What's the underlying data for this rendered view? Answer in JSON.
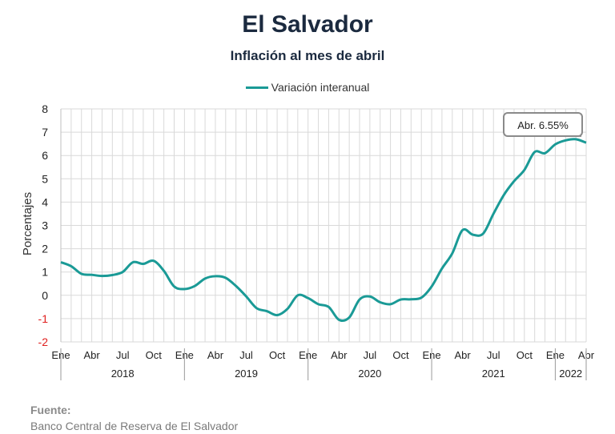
{
  "header": {
    "title": "El Salvador",
    "subtitle": "Inflación al mes de abril"
  },
  "legend": {
    "series_label": "Variación interanual"
  },
  "annotation": {
    "text": "Abr. 6.55%"
  },
  "source": {
    "label": "Fuente:",
    "text": "Banco Central de Reserva de El Salvador"
  },
  "colors": {
    "series": "#1a9a96",
    "grid": "#d9d9d9",
    "negative_tick": "#e0201f"
  },
  "chart_data": {
    "type": "line",
    "title": "El Salvador",
    "subtitle": "Inflación al mes de abril",
    "ylabel": "Porcentajes",
    "xlabel": "",
    "ylim": [
      -2,
      8
    ],
    "yticks": [
      -2,
      -1,
      0,
      1,
      2,
      3,
      4,
      5,
      6,
      7,
      8
    ],
    "grid": true,
    "legend_position": "top-center",
    "x_tick_labels": [
      "Ene",
      "Abr",
      "Jul",
      "Oct",
      "Ene",
      "Abr",
      "Jul",
      "Oct",
      "Ene",
      "Abr",
      "Jul",
      "Oct",
      "Ene",
      "Abr",
      "Jul",
      "Oct",
      "Ene",
      "Abr"
    ],
    "year_labels": [
      "2018",
      "2019",
      "2020",
      "2021",
      "2022"
    ],
    "x": [
      "2018-01",
      "2018-02",
      "2018-03",
      "2018-04",
      "2018-05",
      "2018-06",
      "2018-07",
      "2018-08",
      "2018-09",
      "2018-10",
      "2018-11",
      "2018-12",
      "2019-01",
      "2019-02",
      "2019-03",
      "2019-04",
      "2019-05",
      "2019-06",
      "2019-07",
      "2019-08",
      "2019-09",
      "2019-10",
      "2019-11",
      "2019-12",
      "2020-01",
      "2020-02",
      "2020-03",
      "2020-04",
      "2020-05",
      "2020-06",
      "2020-07",
      "2020-08",
      "2020-09",
      "2020-10",
      "2020-11",
      "2020-12",
      "2021-01",
      "2021-02",
      "2021-03",
      "2021-04",
      "2021-05",
      "2021-06",
      "2021-07",
      "2021-08",
      "2021-09",
      "2021-10",
      "2021-11",
      "2021-12",
      "2022-01",
      "2022-02",
      "2022-03",
      "2022-04"
    ],
    "series": [
      {
        "name": "Variación interanual",
        "values": [
          1.42,
          1.25,
          0.92,
          0.88,
          0.83,
          0.87,
          1.0,
          1.42,
          1.35,
          1.48,
          1.05,
          0.38,
          0.27,
          0.4,
          0.72,
          0.82,
          0.75,
          0.4,
          -0.05,
          -0.55,
          -0.68,
          -0.85,
          -0.58,
          0.0,
          -0.12,
          -0.38,
          -0.5,
          -1.05,
          -0.95,
          -0.18,
          -0.05,
          -0.3,
          -0.38,
          -0.18,
          -0.17,
          -0.1,
          0.38,
          1.15,
          1.8,
          2.8,
          2.6,
          2.65,
          3.5,
          4.3,
          4.9,
          5.38,
          6.15,
          6.1,
          6.48,
          6.65,
          6.7,
          6.55
        ]
      }
    ],
    "annotations": [
      {
        "x": "2022-04",
        "y": 6.55,
        "text": "Abr. 6.55%"
      }
    ]
  }
}
